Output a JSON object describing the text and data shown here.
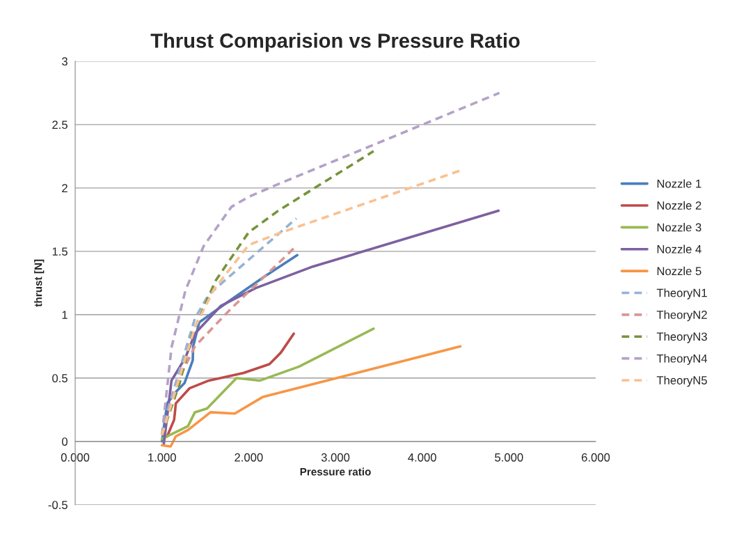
{
  "chart_data": {
    "type": "line",
    "title": "Thrust Comparision vs Pressure Ratio",
    "xlabel": "Pressure ratio",
    "ylabel": "thrust [N]",
    "xlim": [
      0,
      6
    ],
    "ylim": [
      -0.5,
      3
    ],
    "xticks": [
      {
        "value": 0,
        "label": "0.000"
      },
      {
        "value": 1,
        "label": "1.000"
      },
      {
        "value": 2,
        "label": "2.000"
      },
      {
        "value": 3,
        "label": "3.000"
      },
      {
        "value": 4,
        "label": "4.000"
      },
      {
        "value": 5,
        "label": "5.000"
      },
      {
        "value": 6,
        "label": "6.000"
      }
    ],
    "yticks": [
      -0.5,
      0,
      0.5,
      1,
      1.5,
      2,
      2.5,
      3
    ],
    "grid": "y",
    "legend": "right",
    "marker": "none",
    "series": [
      {
        "name": "Nozzle 1",
        "color": "#4a7ebb",
        "line_style": "solid",
        "x": [
          1.0,
          1.06,
          1.16,
          1.26,
          1.355,
          1.36,
          1.43,
          1.8,
          2.18,
          2.56
        ],
        "values": [
          0.0,
          0.3,
          0.39,
          0.46,
          0.64,
          0.75,
          0.94,
          1.12,
          1.3,
          1.47
        ]
      },
      {
        "name": "Nozzle 2",
        "color": "#be4b48",
        "line_style": "solid",
        "x": [
          1.06,
          1.14,
          1.15,
          1.16,
          1.32,
          1.54,
          1.94,
          2.24,
          2.37,
          2.52
        ],
        "values": [
          0.04,
          0.17,
          0.23,
          0.3,
          0.42,
          0.48,
          0.54,
          0.61,
          0.7,
          0.85
        ]
      },
      {
        "name": "Nozzle 3",
        "color": "#98b954",
        "line_style": "solid",
        "x": [
          1.0,
          1.3,
          1.38,
          1.52,
          1.86,
          2.13,
          2.58,
          3.44
        ],
        "values": [
          0.02,
          0.12,
          0.23,
          0.26,
          0.5,
          0.48,
          0.59,
          0.89
        ]
      },
      {
        "name": "Nozzle 4",
        "color": "#7d60a0",
        "line_style": "solid",
        "x": [
          1.02,
          1.11,
          1.27,
          1.38,
          1.68,
          2.08,
          2.74,
          4.88
        ],
        "values": [
          -0.03,
          0.48,
          0.66,
          0.85,
          1.07,
          1.21,
          1.38,
          1.82
        ]
      },
      {
        "name": "Nozzle 5",
        "color": "#f79646",
        "line_style": "solid",
        "x": [
          1.0,
          1.1,
          1.16,
          1.3,
          1.56,
          1.84,
          2.16,
          4.44
        ],
        "values": [
          -0.03,
          -0.04,
          0.04,
          0.09,
          0.23,
          0.22,
          0.35,
          0.75
        ]
      },
      {
        "name": "TheoryN1",
        "color": "#95b3d7",
        "line_style": "dashed",
        "x": [
          1.0,
          1.08,
          1.38,
          1.54,
          2.55
        ],
        "values": [
          0.05,
          0.28,
          0.97,
          1.16,
          1.76
        ]
      },
      {
        "name": "TheoryN2",
        "color": "#d99694",
        "line_style": "dashed",
        "x": [
          1.0,
          1.2,
          1.38,
          1.8,
          2.53
        ],
        "values": [
          0.05,
          0.5,
          0.75,
          1.05,
          1.53
        ]
      },
      {
        "name": "TheoryN3",
        "color": "#77933c",
        "line_style": "dashed",
        "x": [
          1.0,
          1.2,
          1.35,
          1.62,
          2.0,
          2.34,
          3.44
        ],
        "values": [
          0.05,
          0.45,
          0.85,
          1.27,
          1.65,
          1.82,
          2.29
        ]
      },
      {
        "name": "TheoryN4",
        "color": "#b3a2c7",
        "line_style": "dashed",
        "x": [
          1.0,
          1.11,
          1.27,
          1.48,
          1.8,
          2.0,
          2.34,
          4.89
        ],
        "values": [
          0.05,
          0.74,
          1.19,
          1.54,
          1.85,
          1.93,
          2.03,
          2.75
        ]
      },
      {
        "name": "TheoryN5",
        "color": "#fac090",
        "line_style": "dashed",
        "x": [
          1.0,
          1.2,
          1.38,
          1.6,
          2.0,
          2.34,
          4.45
        ],
        "values": [
          0.05,
          0.5,
          0.9,
          1.2,
          1.55,
          1.64,
          2.14
        ]
      }
    ]
  }
}
